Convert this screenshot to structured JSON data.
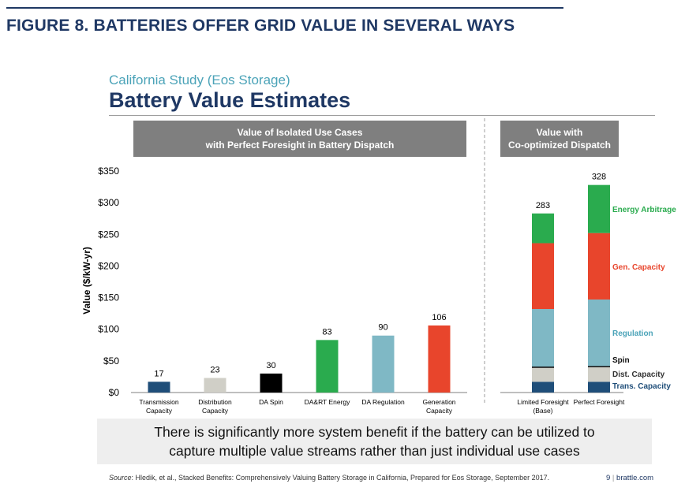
{
  "header": {
    "figure_title": "FIGURE 8. BATTERIES OFFER GRID VALUE IN SEVERAL WAYS",
    "subtitle": "California Study (Eos Storage)",
    "title": "Battery Value Estimates"
  },
  "panels": {
    "left_line1": "Value of Isolated Use Cases",
    "left_line2": "with Perfect Foresight in Battery Dispatch",
    "right_line1": "Value with",
    "right_line2": "Co-optimized Dispatch"
  },
  "colors": {
    "transmission": "#1f4e79",
    "distribution": "#d0cfc7",
    "spin": "#000000",
    "energy": "#2aab4e",
    "regulation": "#7fb8c5",
    "generation": "#e8452c",
    "header_band": "#7f7f7f",
    "title_navy": "#1f3864",
    "subtitle_teal": "#4ba3b8"
  },
  "chart_data": [
    {
      "type": "bar",
      "ylabel": "Value ($/kW-yr)",
      "ylim": [
        0,
        350
      ],
      "yticks": [
        "$0",
        "$50",
        "$100",
        "$150",
        "$200",
        "$250",
        "$300",
        "$350"
      ],
      "categories": [
        [
          "Transmission",
          "Capacity"
        ],
        [
          "Distribution",
          "Capacity"
        ],
        [
          "DA Spin"
        ],
        [
          "DA&RT Energy"
        ],
        [
          "DA Regulation"
        ],
        [
          "Generation",
          "Capacity"
        ]
      ],
      "values": [
        17,
        23,
        30,
        83,
        90,
        106
      ],
      "labels": [
        "17",
        "23",
        "30",
        "83",
        "90",
        "106"
      ],
      "colors": [
        "#1f4e79",
        "#d0cfc7",
        "#000000",
        "#2aab4e",
        "#7fb8c5",
        "#e8452c"
      ]
    },
    {
      "type": "bar",
      "stacked": true,
      "categories": [
        [
          "Limited Foresight",
          "(Base)"
        ],
        [
          "Perfect Foresight"
        ]
      ],
      "totals": [
        "283",
        "328"
      ],
      "series": [
        {
          "name": "Trans. Capacity",
          "values": [
            17,
            17
          ],
          "color": "#1f4e79",
          "label_color": "#1f4e79"
        },
        {
          "name": "Dist. Capacity",
          "values": [
            22,
            23
          ],
          "color": "#d0cfc7",
          "label_color": "#333333"
        },
        {
          "name": "Spin",
          "values": [
            2,
            2
          ],
          "color": "#000000",
          "label_color": "#111111"
        },
        {
          "name": "Regulation",
          "values": [
            91,
            105
          ],
          "color": "#7fb8c5",
          "label_color": "#4ba3b8"
        },
        {
          "name": "Gen. Capacity",
          "values": [
            104,
            105
          ],
          "color": "#e8452c",
          "label_color": "#e8452c"
        },
        {
          "name": "Energy Arbitrage",
          "values": [
            47,
            76
          ],
          "color": "#2aab4e",
          "label_color": "#2aab4e"
        }
      ]
    }
  ],
  "callout": {
    "line1": "There is significantly more system benefit if the battery can be utilized to",
    "line2": "capture multiple value streams rather than just individual use cases"
  },
  "footer": {
    "source_label": "Source",
    "source_text": ": Hledik, et al., Stacked Benefits: Comprehensively Valuing Battery Storage in California, Prepared for Eos Storage, September 2017.",
    "page": "9",
    "site": "brattle.com"
  }
}
